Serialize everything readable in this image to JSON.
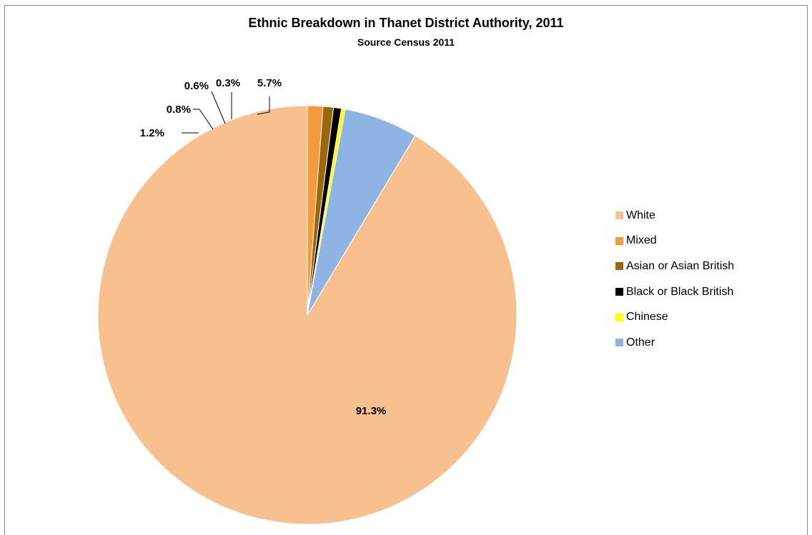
{
  "chart_data": {
    "type": "pie",
    "title": "Ethnic Breakdown in Thanet District Authority, 2011",
    "subtitle": "Source Census 2011",
    "slices": [
      {
        "label": "White",
        "value": 91.3,
        "display": "91.3%",
        "color": "#F9C08F"
      },
      {
        "label": "Mixed",
        "value": 1.2,
        "display": "1.2%",
        "color": "#F79A3C"
      },
      {
        "label": "Asian or Asian British",
        "value": 0.8,
        "display": "0.8%",
        "color": "#9B6708"
      },
      {
        "label": "Black or Black British",
        "value": 0.6,
        "display": "0.6%",
        "color": "#000000"
      },
      {
        "label": "Chinese",
        "value": 0.3,
        "display": "0.3%",
        "color": "#FFFF00"
      },
      {
        "label": "Other",
        "value": 5.7,
        "display": "5.7%",
        "color": "#8EB4E3"
      }
    ],
    "legend_position": "right"
  }
}
